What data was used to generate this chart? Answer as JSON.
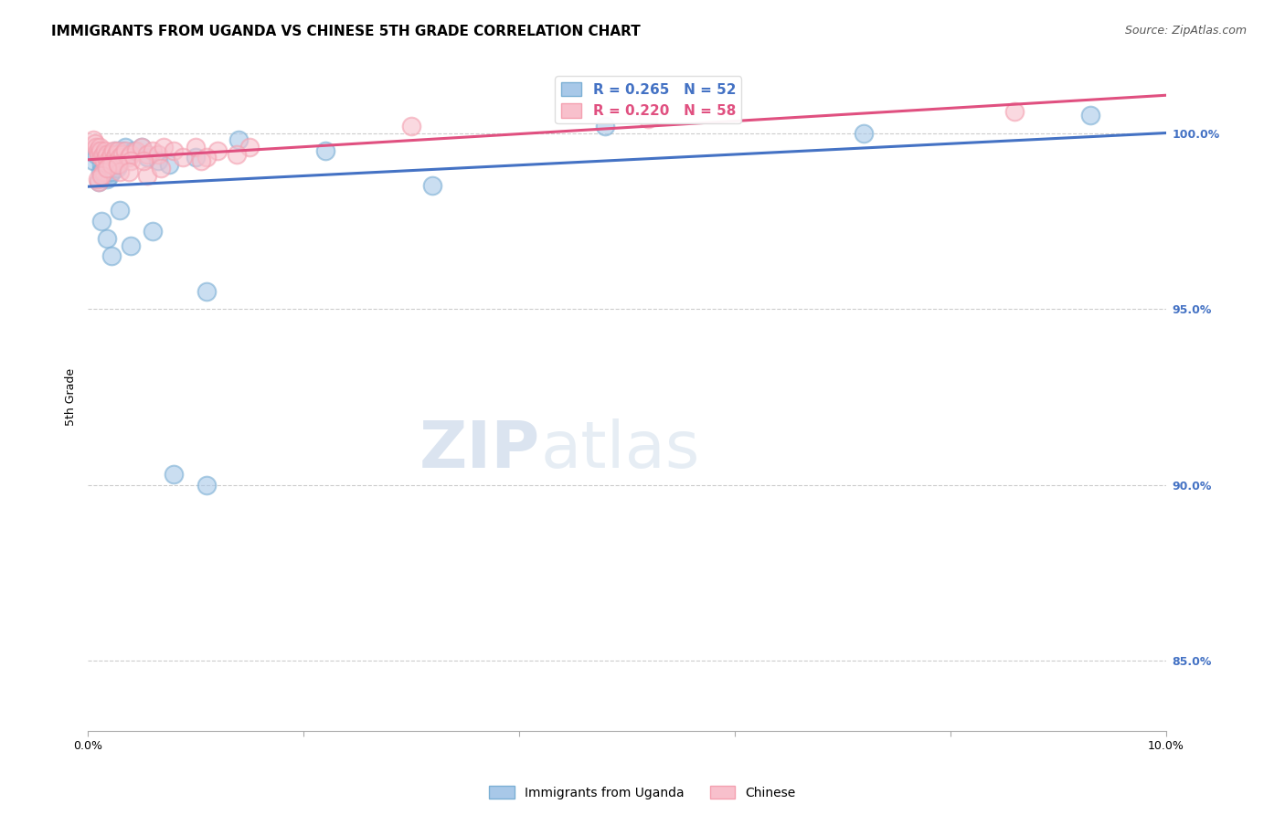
{
  "title": "IMMIGRANTS FROM UGANDA VS CHINESE 5TH GRADE CORRELATION CHART",
  "source": "Source: ZipAtlas.com",
  "ylabel": "5th Grade",
  "xlim": [
    0.0,
    10.0
  ],
  "ylim": [
    83.0,
    102.0
  ],
  "ytick_labels": [
    "85.0%",
    "90.0%",
    "95.0%",
    "100.0%"
  ],
  "ytick_values": [
    85.0,
    90.0,
    95.0,
    100.0
  ],
  "watermark_zip": "ZIP",
  "watermark_atlas": "atlas",
  "legend_blue_label": "R = 0.265   N = 52",
  "legend_pink_label": "R = 0.220   N = 58",
  "uganda_color": "#7BAFD4",
  "chinese_color": "#F4A0B0",
  "uganda_fill": "#A8C8E8",
  "chinese_fill": "#F8C0CC",
  "uganda_line_color": "#4472C4",
  "chinese_line_color": "#E05080",
  "uganda_points_x": [
    0.05,
    0.08,
    0.1,
    0.1,
    0.12,
    0.12,
    0.13,
    0.14,
    0.15,
    0.15,
    0.16,
    0.17,
    0.18,
    0.18,
    0.19,
    0.2,
    0.2,
    0.21,
    0.22,
    0.22,
    0.23,
    0.24,
    0.25,
    0.26,
    0.27,
    0.28,
    0.29,
    0.3,
    0.32,
    0.35,
    0.38,
    0.42,
    0.5,
    0.55,
    0.65,
    0.75,
    1.0,
    1.4,
    2.2,
    3.2,
    0.13,
    0.18,
    0.22,
    0.3,
    0.4,
    0.6,
    1.1,
    4.8,
    7.2,
    9.3,
    1.1,
    0.8
  ],
  "uganda_points_y": [
    99.2,
    99.4,
    99.5,
    98.6,
    99.3,
    98.9,
    99.1,
    99.0,
    99.2,
    98.8,
    99.4,
    99.0,
    99.3,
    98.7,
    99.1,
    99.0,
    98.8,
    99.2,
    99.4,
    98.9,
    99.1,
    99.3,
    99.5,
    99.2,
    99.0,
    99.4,
    99.1,
    99.3,
    99.5,
    99.6,
    99.4,
    99.5,
    99.6,
    99.3,
    99.2,
    99.1,
    99.3,
    99.8,
    99.5,
    98.5,
    97.5,
    97.0,
    96.5,
    97.8,
    96.8,
    97.2,
    95.5,
    100.2,
    100.0,
    100.5,
    90.0,
    90.3
  ],
  "chinese_points_x": [
    0.05,
    0.07,
    0.08,
    0.09,
    0.1,
    0.11,
    0.12,
    0.13,
    0.14,
    0.15,
    0.16,
    0.17,
    0.18,
    0.19,
    0.2,
    0.21,
    0.22,
    0.23,
    0.24,
    0.25,
    0.26,
    0.27,
    0.28,
    0.3,
    0.32,
    0.35,
    0.38,
    0.4,
    0.45,
    0.5,
    0.55,
    0.6,
    0.65,
    0.7,
    0.8,
    1.0,
    1.2,
    1.5,
    0.1,
    0.14,
    0.09,
    0.13,
    0.22,
    0.3,
    0.4,
    0.55,
    1.1,
    3.0,
    5.2,
    8.6,
    0.18,
    0.28,
    0.38,
    0.52,
    0.68,
    0.88,
    1.05,
    1.38
  ],
  "chinese_points_y": [
    99.8,
    99.7,
    99.6,
    99.5,
    99.4,
    99.6,
    99.5,
    99.3,
    99.4,
    99.2,
    99.5,
    99.3,
    99.4,
    99.2,
    99.1,
    99.3,
    99.4,
    99.2,
    99.5,
    99.3,
    99.4,
    99.2,
    99.5,
    99.3,
    99.4,
    99.5,
    99.3,
    99.4,
    99.5,
    99.6,
    99.4,
    99.5,
    99.4,
    99.6,
    99.5,
    99.6,
    99.5,
    99.6,
    98.6,
    98.9,
    98.7,
    98.8,
    99.1,
    98.9,
    99.2,
    98.8,
    99.3,
    100.2,
    100.4,
    100.6,
    99.0,
    99.1,
    98.9,
    99.2,
    99.0,
    99.3,
    99.2,
    99.4
  ],
  "title_fontsize": 11,
  "axis_label_fontsize": 9,
  "tick_fontsize": 9,
  "legend_fontsize": 11,
  "source_fontsize": 9,
  "watermark_fontsize_zip": 52,
  "watermark_fontsize_atlas": 52,
  "bg_color": "#FFFFFF",
  "grid_color": "#CCCCCC",
  "right_axis_color": "#4472C4"
}
